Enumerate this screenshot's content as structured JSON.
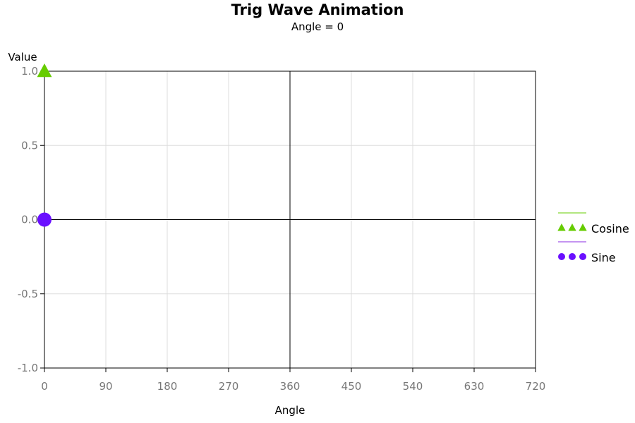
{
  "chart_data": {
    "type": "line",
    "title": "Trig Wave Animation",
    "subtitle": "Angle = 0",
    "xlabel": "Angle",
    "ylabel": "Value",
    "xlim": [
      0,
      720
    ],
    "ylim": [
      -1.0,
      1.0
    ],
    "x_ticks": [
      "0",
      "90",
      "180",
      "270",
      "360",
      "450",
      "540",
      "630",
      "720"
    ],
    "y_ticks": [
      "1.0",
      "0.5",
      "0.0",
      "-0.5",
      "-1.0"
    ],
    "x_tick_values": [
      0,
      90,
      180,
      270,
      360,
      450,
      540,
      630,
      720
    ],
    "y_tick_values": [
      1.0,
      0.5,
      0.0,
      -0.5,
      -1.0
    ],
    "grid": true,
    "reference_lines": {
      "x": [
        360
      ],
      "y": [
        0
      ]
    },
    "legend_position": "right",
    "series": [
      {
        "name": "Cosine",
        "marker": "triangle",
        "color": "#66cc00",
        "points": [
          {
            "x": 0,
            "y": 1.0
          }
        ]
      },
      {
        "name": "Sine",
        "marker": "circle",
        "color": "#6a0fff",
        "line_color": "#8a2be2",
        "points": [
          {
            "x": 0,
            "y": 0.0
          }
        ]
      }
    ]
  }
}
